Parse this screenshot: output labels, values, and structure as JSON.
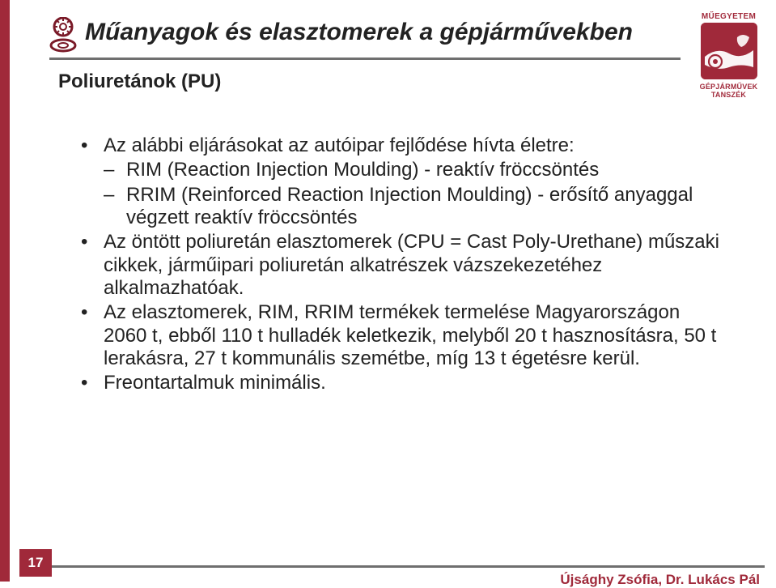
{
  "header": {
    "title": "Műanyagok és elasztomerek a gépjárművekben",
    "subtitle": "Poliuretánok (PU)"
  },
  "logo": {
    "top_label": "MŰEGYETEM",
    "bottom_line1": "GÉPJÁRMŰVEK",
    "bottom_line2": "TANSZÉK",
    "bg_color": "#a0293a"
  },
  "content": {
    "items": [
      {
        "text": "Az alábbi eljárásokat az autóipar fejlődése hívta életre:",
        "children": [
          "RIM (Reaction Injection Moulding) - reaktív fröccsöntés",
          "RRIM (Reinforced Reaction Injection Moulding) - erősítő anyaggal végzett reaktív fröccsöntés"
        ]
      },
      {
        "text": "Az öntött poliuretán elasztomerek (CPU = Cast Poly-Urethane) műszaki cikkek, járműipari poliuretán alkatrészek vázszekezetéhez alkalmazhatóak."
      },
      {
        "text": "Az elasztomerek, RIM, RRIM termékek termelése Magyarországon 2060 t, ebből 110 t hulladék keletkezik, melyből 20 t hasznosításra, 50 t lerakásra, 27 t kommunális szemétbe, míg 13 t égetésre kerül."
      },
      {
        "text": "Freontartalmuk minimális."
      }
    ]
  },
  "footer": {
    "page_number": "17",
    "credits": "Újsághy Zsófia, Dr. Lukács Pál"
  },
  "colors": {
    "accent": "#a0293a",
    "rule": "#6f6f6f",
    "text": "#222222"
  }
}
